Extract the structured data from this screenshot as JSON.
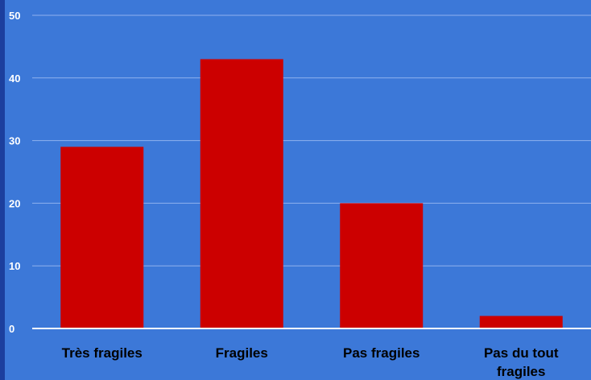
{
  "chart_data": {
    "type": "bar",
    "categories": [
      "Très fragiles",
      "Fragiles",
      "Pas fragiles",
      "Pas du tout fragiles"
    ],
    "category_lines": [
      [
        "Très fragiles"
      ],
      [
        "Fragiles"
      ],
      [
        "Pas fragiles"
      ],
      [
        "Pas du tout",
        "fragiles"
      ]
    ],
    "values": [
      29,
      43,
      20,
      2
    ],
    "ylim": [
      0,
      50
    ],
    "yticks": [
      0,
      10,
      20,
      30,
      40,
      50
    ],
    "grid": true,
    "bar_color": "#cc0000",
    "background": "#3c78d8",
    "grid_color": "#8fb1ee"
  }
}
